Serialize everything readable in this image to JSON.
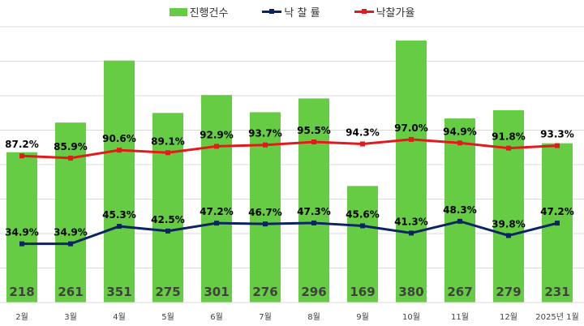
{
  "chart_data": {
    "type": "bar+line",
    "categories": [
      "2월",
      "3월",
      "4월",
      "5월",
      "6월",
      "7월",
      "8월",
      "9월",
      "10월",
      "11월",
      "12월",
      "2025년 1월"
    ],
    "series": [
      {
        "name": "진행건수",
        "type": "bar",
        "axis": "primary",
        "color": "#66cc44",
        "values": [
          218,
          261,
          351,
          275,
          301,
          276,
          296,
          169,
          380,
          267,
          279,
          231
        ]
      },
      {
        "name": "낙 찰 률",
        "type": "line",
        "axis": "secondary",
        "color": "#0a2463",
        "values": [
          34.9,
          34.9,
          45.3,
          42.5,
          47.2,
          46.7,
          47.3,
          45.6,
          41.3,
          48.3,
          39.8,
          47.2
        ]
      },
      {
        "name": "낙찰가율",
        "type": "line",
        "axis": "secondary",
        "color": "#e31a1c",
        "values": [
          87.2,
          85.9,
          90.6,
          89.1,
          92.9,
          93.7,
          95.5,
          94.3,
          97.0,
          94.9,
          91.8,
          93.3
        ]
      }
    ],
    "bar_labels": [
      "218",
      "261",
      "351",
      "275",
      "301",
      "276",
      "296",
      "169",
      "380",
      "267",
      "279",
      "231"
    ],
    "blue_labels": [
      "34.9%",
      "34.9%",
      "45.3%",
      "42.5%",
      "47.2%",
      "46.7%",
      "47.3%",
      "45.6%",
      "41.3%",
      "48.3%",
      "39.8%",
      "47.2%"
    ],
    "red_labels": [
      "87.2%",
      "85.9%",
      "90.6%",
      "89.1%",
      "92.9%",
      "93.7%",
      "95.5%",
      "94.3%",
      "97.0%",
      "94.9%",
      "91.8%",
      "93.3%"
    ],
    "ylim": [
      0,
      400
    ],
    "y2lim": [
      0,
      164
    ],
    "grid": true,
    "legend": "top"
  }
}
